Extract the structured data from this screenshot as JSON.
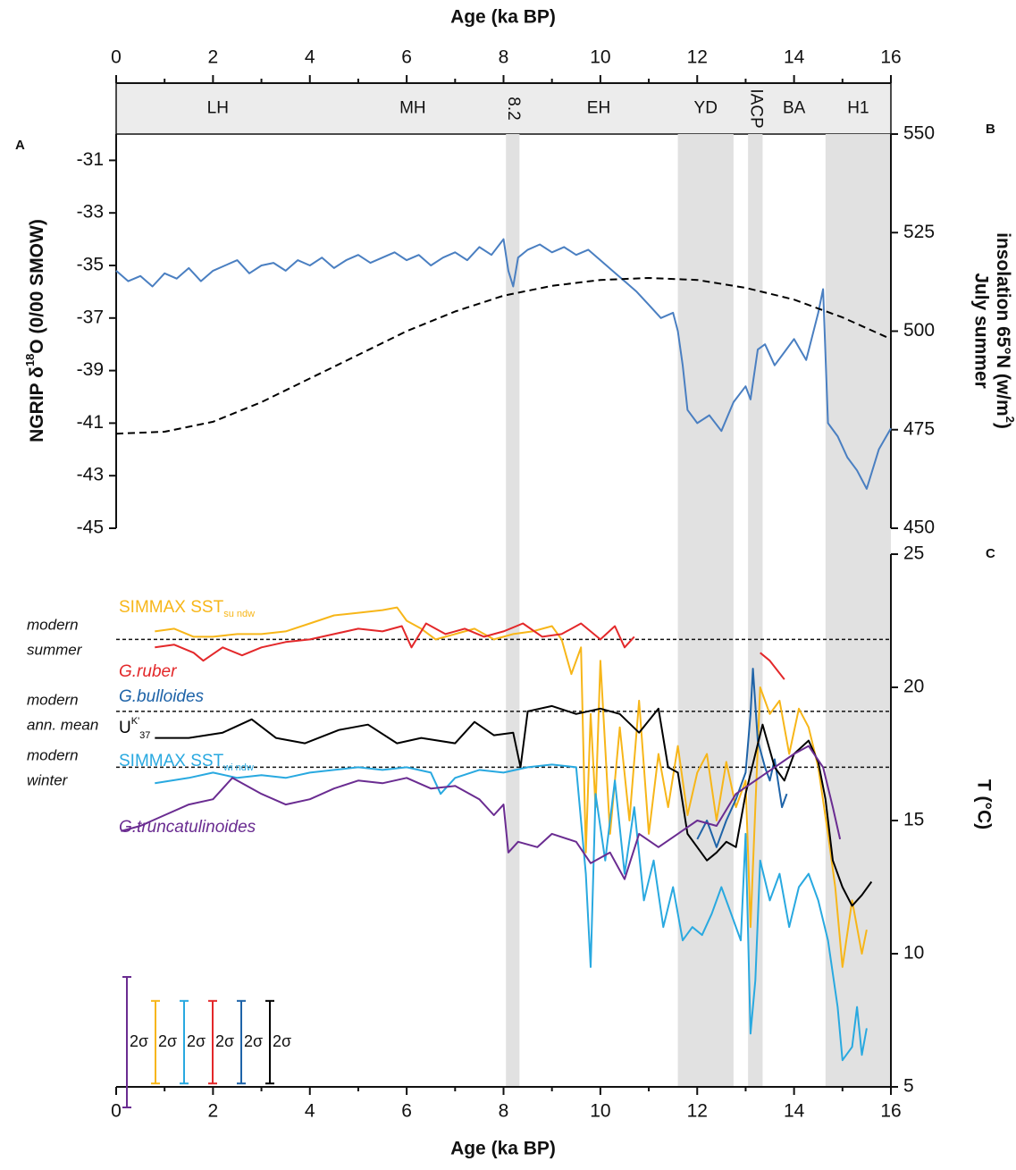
{
  "chart_data": [
    {
      "type": "line",
      "panel": "A",
      "panel2": "B",
      "xlabel": "Age (ka BP)",
      "xlim": [
        0,
        16
      ],
      "xticks": [
        0,
        2,
        4,
        6,
        8,
        10,
        12,
        14,
        16
      ],
      "xminorticks": [
        1,
        3,
        5,
        7,
        9,
        11,
        13,
        15
      ],
      "ylabel": [
        "NGRIP δ",
        "18",
        "O (0/00 SMOW)"
      ],
      "ylim": [
        -45,
        -30
      ],
      "yticks": [
        -45,
        -43,
        -41,
        -39,
        -37,
        -35,
        -33,
        -31
      ],
      "y2label": [
        "July summer",
        "insolation 65°N  (w/m",
        "2",
        ")"
      ],
      "y2lim": [
        450,
        550
      ],
      "y2ticks": [
        450,
        475,
        500,
        525,
        550
      ],
      "periods": [
        {
          "label": "LH",
          "start": 0,
          "end": 4.2,
          "shaded": false,
          "rotated": false
        },
        {
          "label": "MH",
          "start": 4.2,
          "end": 8.05,
          "shaded": false,
          "rotated": false
        },
        {
          "label": "8.2",
          "start": 8.05,
          "end": 8.33,
          "shaded": true,
          "rotated": true
        },
        {
          "label": "EH",
          "start": 8.33,
          "end": 11.6,
          "shaded": false,
          "rotated": false
        },
        {
          "label": "YD",
          "start": 11.6,
          "end": 12.75,
          "shaded": true,
          "rotated": false
        },
        {
          "label": "IACP",
          "start": 13.05,
          "end": 13.35,
          "shaded": true,
          "rotated": true
        },
        {
          "label": "BA",
          "start": 13.35,
          "end": 14.65,
          "shaded": false,
          "rotated": false
        },
        {
          "label": "H1",
          "start": 14.65,
          "end": 16,
          "shaded": true,
          "rotated": false
        }
      ],
      "series": [
        {
          "color": "#4a7fc1",
          "dashed": false,
          "x": [
            0,
            0.25,
            0.5,
            0.75,
            1,
            1.25,
            1.5,
            1.75,
            2,
            2.25,
            2.5,
            2.75,
            3,
            3.25,
            3.5,
            3.75,
            4,
            4.25,
            4.5,
            4.75,
            5,
            5.25,
            5.5,
            5.75,
            6,
            6.25,
            6.5,
            6.75,
            7,
            7.25,
            7.5,
            7.75,
            8,
            8.1,
            8.2,
            8.3,
            8.5,
            8.75,
            9,
            9.25,
            9.5,
            9.75,
            10,
            10.25,
            10.5,
            10.75,
            11,
            11.25,
            11.5,
            11.6,
            11.7,
            11.8,
            12,
            12.25,
            12.5,
            12.75,
            13,
            13.1,
            13.25,
            13.4,
            13.6,
            13.8,
            14,
            14.25,
            14.5,
            14.6,
            14.7,
            14.9,
            15.1,
            15.3,
            15.5,
            15.75,
            16
          ],
          "values": [
            -35.2,
            -35.6,
            -35.4,
            -35.8,
            -35.3,
            -35.5,
            -35.1,
            -35.6,
            -35.2,
            -35.0,
            -34.8,
            -35.3,
            -35.0,
            -34.9,
            -35.2,
            -34.8,
            -35.0,
            -34.7,
            -35.1,
            -34.8,
            -34.6,
            -34.9,
            -34.7,
            -34.5,
            -34.8,
            -34.6,
            -35.0,
            -34.7,
            -34.5,
            -34.8,
            -34.3,
            -34.6,
            -34.0,
            -35.2,
            -35.8,
            -34.7,
            -34.4,
            -34.2,
            -34.5,
            -34.3,
            -34.6,
            -34.4,
            -34.8,
            -35.2,
            -35.6,
            -36.0,
            -36.5,
            -37.0,
            -36.8,
            -37.5,
            -38.8,
            -40.5,
            -41.0,
            -40.7,
            -41.3,
            -40.2,
            -39.6,
            -40.1,
            -38.2,
            -38.0,
            -38.8,
            -38.3,
            -37.8,
            -38.6,
            -36.8,
            -35.9,
            -41.0,
            -41.5,
            -42.3,
            -42.8,
            -43.5,
            -42.0,
            -41.2
          ]
        },
        {
          "color": "#000000",
          "dashed": true,
          "axis": "y2",
          "x": [
            0,
            1,
            2,
            3,
            4,
            5,
            6,
            7,
            8,
            9,
            10,
            11,
            12,
            13,
            14,
            15,
            16
          ],
          "values": [
            474,
            474.5,
            477,
            482,
            488,
            494,
            500,
            505,
            509,
            511.5,
            513,
            513.5,
            513,
            511,
            508,
            503.5,
            498
          ]
        }
      ]
    },
    {
      "type": "line",
      "panel": "C",
      "xlabel": "Age (ka BP)",
      "xlim": [
        0,
        16
      ],
      "xticks": [
        0,
        2,
        4,
        6,
        8,
        10,
        12,
        14,
        16
      ],
      "xminorticks": [
        1,
        3,
        5,
        7,
        9,
        11,
        13,
        15
      ],
      "ylabel": "T (°C)",
      "ylim": [
        5,
        25
      ],
      "yticks": [
        5,
        10,
        15,
        20,
        25
      ],
      "reference_lines": [
        {
          "label": [
            "modern",
            "summer"
          ],
          "value": 21.8
        },
        {
          "label": [
            "modern",
            "ann. mean"
          ],
          "value": 19.1
        },
        {
          "label": [
            "modern",
            "winter"
          ],
          "value": 17.0
        }
      ],
      "series": [
        {
          "name": "SIMMAX SST",
          "name_sub": "su ndw",
          "color": "#f7b619",
          "italic": false,
          "x": [
            0.8,
            1.2,
            1.6,
            2,
            2.5,
            3,
            3.5,
            4,
            4.5,
            5,
            5.5,
            5.8,
            6.0,
            6.3,
            6.6,
            7.0,
            7.4,
            7.8,
            8.2,
            8.6,
            9.0,
            9.2,
            9.4,
            9.6,
            9.7,
            9.8,
            9.9,
            10.0,
            10.2,
            10.4,
            10.6,
            10.8,
            11.0,
            11.2,
            11.4,
            11.6,
            11.8,
            12.0,
            12.2,
            12.4,
            12.6,
            12.8,
            13.0,
            13.1,
            13.2,
            13.3,
            13.5,
            13.7,
            13.9,
            14.1,
            14.3,
            14.5,
            14.7,
            14.85,
            15.0,
            15.2,
            15.4,
            15.5
          ],
          "values": [
            22.1,
            22.2,
            21.9,
            21.9,
            22.0,
            22.0,
            22.1,
            22.4,
            22.7,
            22.8,
            22.9,
            23.0,
            22.5,
            22.2,
            21.8,
            22.0,
            22.2,
            21.8,
            22.0,
            22.1,
            22.3,
            21.8,
            20.5,
            21.5,
            13.8,
            19.0,
            15.5,
            21.0,
            14.5,
            18.5,
            15.0,
            19.5,
            14.5,
            17.5,
            15.5,
            17.8,
            15.2,
            16.8,
            17.5,
            15.0,
            17.2,
            15.5,
            16.5,
            11.0,
            15.5,
            20.0,
            19.0,
            19.5,
            17.5,
            19.2,
            18.5,
            17.0,
            14.5,
            12.5,
            9.5,
            12.0,
            10.0,
            10.9
          ]
        },
        {
          "name": "G.ruber",
          "color": "#e3282a",
          "italic": true,
          "x": [
            0.8,
            1.2,
            1.6,
            1.8,
            2.2,
            2.6,
            3.0,
            3.5,
            4.0,
            4.5,
            5.0,
            5.5,
            5.9,
            6.1,
            6.4,
            6.8,
            7.2,
            7.6,
            8.0,
            8.4,
            8.8,
            9.2,
            9.6,
            10.0,
            10.3,
            10.5,
            10.7,
            12.0,
            13.3,
            13.5,
            13.8
          ],
          "values": [
            21.5,
            21.6,
            21.3,
            21.0,
            21.5,
            21.2,
            21.5,
            21.7,
            21.8,
            22.0,
            22.2,
            22.1,
            22.3,
            21.5,
            22.4,
            22.0,
            22.2,
            21.9,
            22.1,
            22.4,
            21.9,
            22.0,
            22.4,
            21.8,
            22.3,
            21.5,
            21.9,
            null,
            21.3,
            21.0,
            20.3
          ]
        },
        {
          "name": "G.bulloides",
          "color": "#1e63a8",
          "italic": true,
          "x": [
            12.0,
            12.2,
            12.4,
            12.6,
            12.8,
            13.0,
            13.1,
            13.15,
            13.25,
            13.4,
            13.5,
            13.6,
            13.75,
            13.85
          ],
          "values": [
            14.3,
            15.0,
            14.0,
            15.0,
            15.8,
            16.8,
            19.0,
            20.7,
            18.0,
            17.0,
            16.5,
            17.3,
            15.5,
            16.0
          ]
        },
        {
          "name": "U",
          "name_sup": "K'",
          "name_sub": "37",
          "color": "#000000",
          "italic": false,
          "x": [
            0.8,
            1.5,
            2.2,
            2.8,
            3.3,
            3.9,
            4.6,
            5.2,
            5.8,
            6.3,
            7.0,
            7.4,
            7.8,
            8.2,
            8.35,
            8.5,
            9.0,
            9.5,
            10.0,
            10.4,
            10.8,
            11.2,
            11.4,
            11.6,
            11.8,
            12.0,
            12.2,
            12.4,
            12.6,
            12.8,
            13.0,
            13.2,
            13.35,
            13.6,
            13.8,
            14.0,
            14.3,
            14.5,
            14.65,
            14.8,
            15.0,
            15.2,
            15.4,
            15.6
          ],
          "values": [
            18.1,
            18.1,
            18.3,
            18.8,
            18.1,
            17.9,
            18.4,
            18.6,
            17.9,
            18.1,
            17.9,
            18.7,
            18.2,
            18.3,
            17.0,
            19.1,
            19.3,
            19.0,
            19.2,
            19.0,
            18.3,
            19.2,
            17.0,
            16.8,
            14.5,
            14.0,
            13.5,
            13.8,
            14.2,
            14.0,
            16.0,
            17.5,
            18.6,
            17.0,
            16.5,
            17.5,
            18.0,
            17.2,
            15.8,
            13.5,
            12.5,
            11.8,
            12.2,
            12.7
          ]
        },
        {
          "name": "SIMMAX SST",
          "name_sub": "wi ndw",
          "color": "#29a9e0",
          "italic": false,
          "x": [
            0.8,
            1.5,
            2.0,
            2.5,
            3.0,
            3.5,
            4.0,
            4.5,
            5.0,
            5.5,
            6.0,
            6.5,
            6.7,
            7.0,
            7.5,
            8.0,
            8.5,
            9.0,
            9.5,
            9.7,
            9.8,
            9.9,
            10.1,
            10.3,
            10.5,
            10.7,
            10.9,
            11.1,
            11.3,
            11.5,
            11.7,
            11.9,
            12.1,
            12.3,
            12.5,
            12.7,
            12.9,
            13.0,
            13.1,
            13.2,
            13.3,
            13.5,
            13.7,
            13.9,
            14.1,
            14.3,
            14.5,
            14.7,
            14.9,
            15.0,
            15.2,
            15.3,
            15.4,
            15.5
          ],
          "values": [
            16.4,
            16.6,
            16.8,
            16.6,
            16.7,
            16.6,
            16.8,
            16.9,
            17.0,
            16.9,
            17.0,
            16.8,
            16.0,
            16.6,
            16.9,
            16.8,
            17.0,
            17.1,
            17.0,
            13.0,
            9.5,
            16.0,
            13.5,
            16.5,
            13.0,
            15.5,
            12.0,
            13.5,
            11.0,
            12.5,
            10.5,
            11.0,
            10.7,
            11.5,
            12.5,
            11.5,
            10.5,
            14.5,
            7.0,
            9.0,
            13.5,
            12.0,
            13.0,
            11.0,
            12.5,
            13.0,
            12.0,
            10.5,
            8.0,
            6.0,
            6.5,
            8.0,
            6.2,
            7.2
          ]
        },
        {
          "name": "G.truncatulinoides",
          "color": "#6a2c91",
          "italic": true,
          "x": [
            0.1,
            0.5,
            1.0,
            1.5,
            2.0,
            2.4,
            3.0,
            3.5,
            4.0,
            4.5,
            5.0,
            5.5,
            6.0,
            6.5,
            7.0,
            7.5,
            7.8,
            8.0,
            8.1,
            8.3,
            8.7,
            9.0,
            9.5,
            9.8,
            10.2,
            10.5,
            10.8,
            11.2,
            11.6,
            12.0,
            12.4,
            12.8,
            13.2,
            13.6,
            14.0,
            14.3,
            14.6,
            14.8,
            14.95
          ],
          "values": [
            14.6,
            14.8,
            15.2,
            15.6,
            15.8,
            16.6,
            16.0,
            15.6,
            15.8,
            16.2,
            16.5,
            16.4,
            16.6,
            16.2,
            16.3,
            15.8,
            15.2,
            15.6,
            13.8,
            14.2,
            14.0,
            14.5,
            14.2,
            13.4,
            13.8,
            12.8,
            14.5,
            14.0,
            14.5,
            15.0,
            14.8,
            16.0,
            16.5,
            17.0,
            17.5,
            17.8,
            17.0,
            15.5,
            14.3
          ]
        }
      ],
      "error_bars": [
        {
          "label": "2σ",
          "color": "#6a2c91",
          "value": 4.9
        },
        {
          "label": "2σ",
          "color": "#f7b619",
          "value": 3.1
        },
        {
          "label": "2σ",
          "color": "#29a9e0",
          "value": 3.1
        },
        {
          "label": "2σ",
          "color": "#e3282a",
          "value": 3.1
        },
        {
          "label": "2σ",
          "color": "#1e63a8",
          "value": 3.1
        },
        {
          "label": "2σ",
          "color": "#000000",
          "value": 3.1
        }
      ]
    }
  ]
}
